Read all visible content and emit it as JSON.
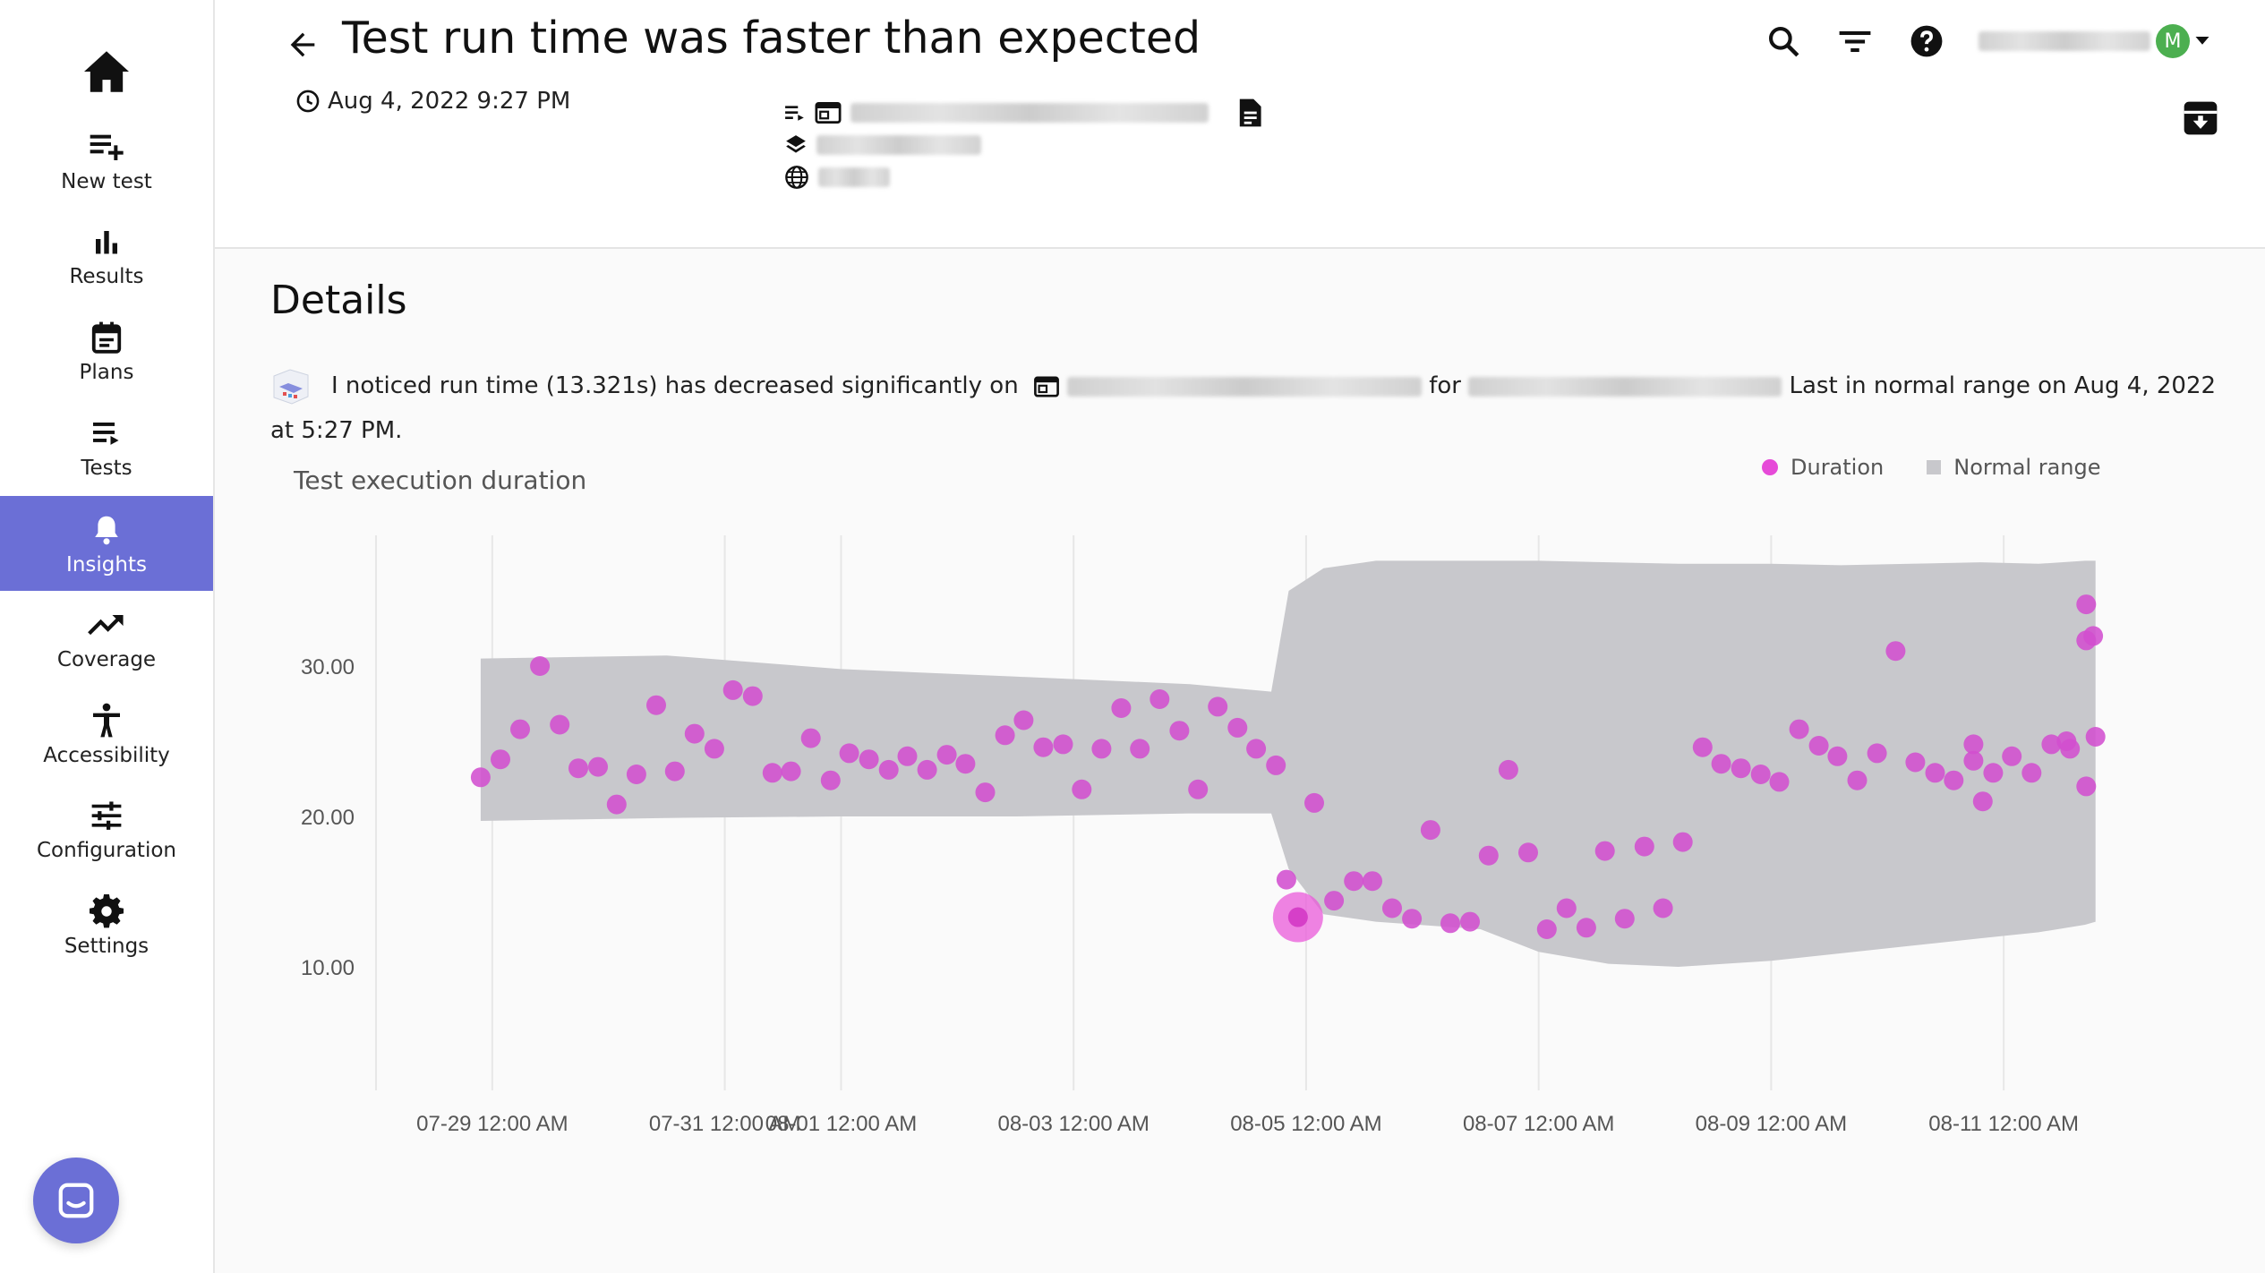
{
  "sidebar": {
    "items": [
      {
        "label": "New test",
        "icon": "playlist-add-icon"
      },
      {
        "label": "Results",
        "icon": "bar-chart-icon"
      },
      {
        "label": "Plans",
        "icon": "calendar-icon"
      },
      {
        "label": "Tests",
        "icon": "list-icon"
      },
      {
        "label": "Insights",
        "icon": "bell-icon",
        "active": true
      },
      {
        "label": "Coverage",
        "icon": "trending-up-icon"
      },
      {
        "label": "Accessibility",
        "icon": "accessibility-icon"
      },
      {
        "label": "Configuration",
        "icon": "sliders-icon"
      },
      {
        "label": "Settings",
        "icon": "gear-icon"
      }
    ]
  },
  "header": {
    "title": "Test run time was faster than expected",
    "timestamp": "Aug 4, 2022 9:27 PM",
    "avatar_initial": "M"
  },
  "details": {
    "heading": "Details",
    "sentence_start": "I noticed run time (13.321s) has decreased significantly on",
    "sentence_for": "for",
    "sentence_end": "Last in normal range on Aug 4, 2022 at 5:27 PM."
  },
  "colors": {
    "accent": "#6b6fd6",
    "duration_point": "#d14fcf",
    "normal_range": "#c8c8cc"
  },
  "chart_data": {
    "type": "scatter",
    "title": "Test execution duration",
    "legend": [
      "Duration",
      "Normal range"
    ],
    "legend_position": "top-right",
    "grid": true,
    "yticks": [
      "10.00",
      "20.00",
      "30.00"
    ],
    "ylim": [
      0,
      37.5
    ],
    "xticks": [
      "07-29 12:00 AM",
      "07-31 12:00 AM",
      "08-01 12:00 AM",
      "08-03 12:00 AM",
      "08-05 12:00 AM",
      "08-07 12:00 AM",
      "08-09 12:00 AM",
      "08-11 12:00 AM"
    ],
    "xtick_days": [
      1,
      3,
      4,
      6,
      8,
      10,
      12,
      14
    ],
    "xlim_days": [
      0,
      15
    ],
    "highlight": {
      "day": 7.93,
      "y": 13.3
    },
    "series": [
      {
        "name": "Duration",
        "points": [
          [
            0.9,
            22.6
          ],
          [
            1.07,
            23.8
          ],
          [
            1.24,
            25.8
          ],
          [
            1.41,
            30.0
          ],
          [
            1.58,
            26.1
          ],
          [
            1.74,
            23.2
          ],
          [
            1.91,
            23.3
          ],
          [
            2.07,
            20.8
          ],
          [
            2.24,
            22.8
          ],
          [
            2.41,
            27.4
          ],
          [
            2.57,
            23.0
          ],
          [
            2.74,
            25.5
          ],
          [
            2.91,
            24.5
          ],
          [
            3.07,
            28.4
          ],
          [
            3.24,
            28.0
          ],
          [
            3.41,
            22.9
          ],
          [
            3.57,
            23.0
          ],
          [
            3.74,
            25.2
          ],
          [
            3.91,
            22.4
          ],
          [
            4.07,
            24.2
          ],
          [
            4.24,
            23.8
          ],
          [
            4.41,
            23.1
          ],
          [
            4.57,
            24.0
          ],
          [
            4.74,
            23.1
          ],
          [
            4.91,
            24.1
          ],
          [
            5.07,
            23.5
          ],
          [
            5.24,
            21.6
          ],
          [
            5.41,
            25.4
          ],
          [
            5.57,
            26.4
          ],
          [
            5.74,
            24.6
          ],
          [
            5.91,
            24.8
          ],
          [
            6.07,
            21.8
          ],
          [
            6.24,
            24.5
          ],
          [
            6.41,
            27.2
          ],
          [
            6.57,
            24.5
          ],
          [
            6.74,
            27.8
          ],
          [
            6.91,
            25.7
          ],
          [
            7.07,
            21.8
          ],
          [
            7.24,
            27.3
          ],
          [
            7.41,
            25.9
          ],
          [
            7.57,
            24.5
          ],
          [
            7.74,
            23.4
          ],
          [
            7.83,
            15.8
          ],
          [
            8.07,
            20.9
          ],
          [
            8.24,
            14.4
          ],
          [
            8.41,
            15.7
          ],
          [
            8.57,
            15.7
          ],
          [
            8.74,
            13.9
          ],
          [
            8.91,
            13.2
          ],
          [
            9.07,
            19.1
          ],
          [
            9.24,
            12.9
          ],
          [
            9.41,
            13.0
          ],
          [
            9.57,
            17.4
          ],
          [
            9.74,
            23.1
          ],
          [
            9.91,
            17.6
          ],
          [
            10.07,
            12.5
          ],
          [
            10.24,
            13.9
          ],
          [
            10.41,
            12.6
          ],
          [
            10.57,
            17.7
          ],
          [
            10.74,
            13.2
          ],
          [
            10.91,
            18.0
          ],
          [
            11.07,
            13.9
          ],
          [
            11.24,
            18.3
          ],
          [
            11.41,
            24.6
          ],
          [
            11.57,
            23.5
          ],
          [
            11.74,
            23.2
          ],
          [
            11.91,
            22.8
          ],
          [
            12.07,
            22.3
          ],
          [
            12.24,
            25.8
          ],
          [
            12.41,
            24.7
          ],
          [
            12.57,
            24.0
          ],
          [
            12.74,
            22.4
          ],
          [
            12.91,
            24.2
          ],
          [
            13.07,
            31.0
          ],
          [
            13.24,
            23.6
          ],
          [
            13.41,
            22.9
          ],
          [
            13.57,
            22.4
          ],
          [
            13.74,
            24.8
          ],
          [
            13.74,
            23.7
          ],
          [
            13.82,
            21.0
          ],
          [
            13.91,
            22.9
          ],
          [
            14.07,
            24.0
          ],
          [
            14.24,
            22.9
          ],
          [
            14.41,
            24.8
          ],
          [
            14.54,
            25.0
          ],
          [
            14.57,
            24.5
          ],
          [
            14.71,
            34.1
          ],
          [
            14.71,
            31.7
          ],
          [
            14.77,
            32.0
          ],
          [
            14.71,
            22.0
          ],
          [
            14.79,
            25.3
          ]
        ]
      },
      {
        "name": "Normal range",
        "x_days": [
          0.9,
          2.5,
          4.0,
          5.5,
          7.0,
          7.7,
          7.85,
          8.15,
          8.6,
          9.5,
          10.0,
          10.6,
          11.2,
          12.0,
          12.6,
          13.2,
          13.8,
          14.3,
          14.7,
          14.79
        ],
        "upper": [
          30.5,
          30.7,
          29.8,
          29.3,
          28.8,
          28.3,
          35.0,
          36.5,
          37.0,
          37.0,
          37.0,
          36.9,
          36.8,
          36.8,
          36.7,
          36.8,
          36.9,
          36.8,
          37.0,
          37.0
        ],
        "lower": [
          19.7,
          19.9,
          20.0,
          20.0,
          20.2,
          20.2,
          16.5,
          13.5,
          13.0,
          12.5,
          11.0,
          10.2,
          10.0,
          10.4,
          10.9,
          11.4,
          11.9,
          12.3,
          12.8,
          13.0
        ]
      }
    ]
  }
}
